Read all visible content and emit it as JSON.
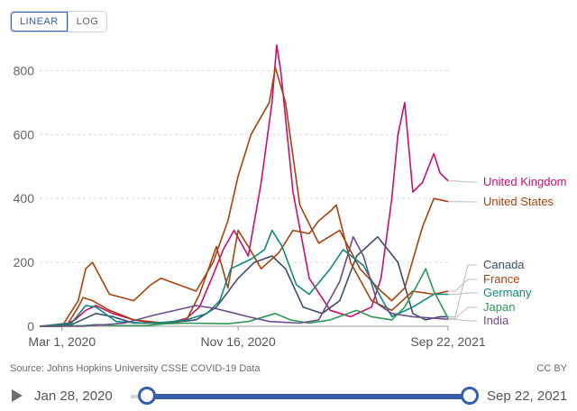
{
  "scale_toggle": {
    "linear": "LINEAR",
    "log": "LOG",
    "active": "linear"
  },
  "source": "Source: Johns Hopkins University CSSE COVID-19 Data",
  "license": "CC BY",
  "timeline": {
    "start": "Jan 28, 2020",
    "end": "Sep 22, 2021"
  },
  "chart_data": {
    "type": "line",
    "xticks": [
      "Mar 1, 2020",
      "Nov 16, 2020",
      "Sep 22, 2021"
    ],
    "yticks": [
      0,
      200,
      400,
      600,
      800
    ],
    "ylim": [
      0,
      880
    ],
    "xdomain": [
      "2020-01-28",
      "2021-09-22"
    ],
    "grid": true,
    "labels_position": "right-end",
    "series": [
      {
        "name": "United Kingdom",
        "color": "#ce0d6c",
        "dates": [
          "2020-01-28",
          "2020-03-01",
          "2020-03-20",
          "2020-04-05",
          "2020-04-20",
          "2020-05-15",
          "2020-06-15",
          "2020-07-15",
          "2020-08-15",
          "2020-09-01",
          "2020-09-20",
          "2020-10-10",
          "2020-10-25",
          "2020-11-10",
          "2020-12-01",
          "2020-12-20",
          "2021-01-05",
          "2021-01-12",
          "2021-01-18",
          "2021-02-05",
          "2021-03-01",
          "2021-04-01",
          "2021-05-01",
          "2021-06-01",
          "2021-06-15",
          "2021-07-01",
          "2021-07-10",
          "2021-07-20",
          "2021-08-01",
          "2021-08-15",
          "2021-09-01",
          "2021-09-10",
          "2021-09-22"
        ],
        "values": [
          0,
          0,
          20,
          50,
          65,
          40,
          20,
          10,
          15,
          25,
          60,
          160,
          240,
          300,
          220,
          450,
          700,
          880,
          800,
          420,
          150,
          50,
          30,
          60,
          150,
          400,
          600,
          700,
          420,
          450,
          540,
          480,
          455
        ]
      },
      {
        "name": "United States",
        "color": "#a8410e",
        "dates": [
          "2020-01-28",
          "2020-03-01",
          "2020-03-25",
          "2020-04-05",
          "2020-04-15",
          "2020-05-10",
          "2020-06-15",
          "2020-07-10",
          "2020-07-25",
          "2020-08-20",
          "2020-09-15",
          "2020-10-10",
          "2020-11-01",
          "2020-11-16",
          "2020-12-05",
          "2021-01-01",
          "2021-01-10",
          "2021-01-25",
          "2021-02-15",
          "2021-03-15",
          "2021-04-15",
          "2021-05-15",
          "2021-06-15",
          "2021-07-01",
          "2021-07-20",
          "2021-08-15",
          "2021-09-01",
          "2021-09-22"
        ],
        "values": [
          0,
          0,
          80,
          180,
          200,
          100,
          80,
          130,
          150,
          130,
          110,
          200,
          330,
          470,
          600,
          700,
          810,
          700,
          380,
          260,
          300,
          180,
          110,
          80,
          120,
          310,
          400,
          390
        ]
      },
      {
        "name": "Canada",
        "color": "#3a4d6b",
        "dates": [
          "2020-01-28",
          "2020-03-15",
          "2020-04-20",
          "2020-05-15",
          "2020-06-15",
          "2020-08-01",
          "2020-09-15",
          "2020-10-15",
          "2020-11-16",
          "2020-12-10",
          "2021-01-05",
          "2021-01-25",
          "2021-02-20",
          "2021-03-20",
          "2021-04-15",
          "2021-05-10",
          "2021-06-10",
          "2021-07-10",
          "2021-08-01",
          "2021-08-20",
          "2021-09-10",
          "2021-09-22"
        ],
        "values": [
          0,
          5,
          40,
          30,
          10,
          10,
          20,
          60,
          150,
          200,
          220,
          180,
          60,
          40,
          80,
          220,
          280,
          200,
          40,
          20,
          30,
          30
        ]
      },
      {
        "name": "France",
        "color": "#a8410e",
        "dates": [
          "2020-01-28",
          "2020-03-10",
          "2020-03-25",
          "2020-04-01",
          "2020-04-15",
          "2020-05-10",
          "2020-06-15",
          "2020-08-01",
          "2020-09-01",
          "2020-09-20",
          "2020-10-15",
          "2020-11-01",
          "2020-11-16",
          "2020-12-01",
          "2020-12-20",
          "2021-01-15",
          "2021-02-05",
          "2021-03-01",
          "2021-03-15",
          "2021-04-01",
          "2021-04-10",
          "2021-05-01",
          "2021-06-01",
          "2021-07-01",
          "2021-08-01",
          "2021-09-01",
          "2021-09-22"
        ],
        "values": [
          0,
          10,
          60,
          90,
          80,
          50,
          20,
          10,
          20,
          100,
          250,
          120,
          300,
          250,
          180,
          230,
          300,
          290,
          330,
          360,
          380,
          200,
          80,
          50,
          110,
          100,
          110
        ]
      },
      {
        "name": "Germany",
        "color": "#10877f",
        "dates": [
          "2020-01-28",
          "2020-03-15",
          "2020-04-05",
          "2020-04-20",
          "2020-05-20",
          "2020-07-01",
          "2020-08-01",
          "2020-09-01",
          "2020-10-01",
          "2020-10-20",
          "2020-11-05",
          "2020-12-05",
          "2020-12-25",
          "2021-01-05",
          "2021-01-20",
          "2021-02-10",
          "2021-03-01",
          "2021-04-01",
          "2021-04-20",
          "2021-05-20",
          "2021-06-15",
          "2021-07-01",
          "2021-08-01",
          "2021-09-01",
          "2021-09-22"
        ],
        "values": [
          0,
          10,
          65,
          60,
          15,
          10,
          12,
          20,
          40,
          80,
          180,
          210,
          240,
          300,
          250,
          130,
          100,
          180,
          240,
          190,
          90,
          30,
          60,
          100,
          100
        ]
      },
      {
        "name": "Japan",
        "color": "#2c9a54",
        "dates": [
          "2020-01-28",
          "2020-04-01",
          "2020-04-20",
          "2020-05-20",
          "2020-07-01",
          "2020-08-01",
          "2020-09-01",
          "2020-11-01",
          "2020-12-01",
          "2021-01-10",
          "2021-02-01",
          "2021-03-01",
          "2021-04-01",
          "2021-05-10",
          "2021-06-01",
          "2021-07-01",
          "2021-07-20",
          "2021-08-05",
          "2021-08-20",
          "2021-09-01",
          "2021-09-22"
        ],
        "values": [
          0,
          2,
          5,
          2,
          2,
          8,
          10,
          8,
          15,
          40,
          20,
          10,
          20,
          50,
          30,
          20,
          60,
          120,
          180,
          110,
          25
        ]
      },
      {
        "name": "India",
        "color": "#6c4d8c",
        "dates": [
          "2020-01-28",
          "2020-04-01",
          "2020-06-01",
          "2020-07-15",
          "2020-09-15",
          "2020-10-15",
          "2020-12-01",
          "2021-01-01",
          "2021-02-15",
          "2021-03-15",
          "2021-04-15",
          "2021-05-05",
          "2021-05-20",
          "2021-06-10",
          "2021-07-01",
          "2021-08-01",
          "2021-09-22"
        ],
        "values": [
          0,
          0,
          10,
          35,
          65,
          55,
          30,
          15,
          10,
          20,
          140,
          280,
          220,
          70,
          40,
          30,
          22
        ]
      }
    ]
  }
}
